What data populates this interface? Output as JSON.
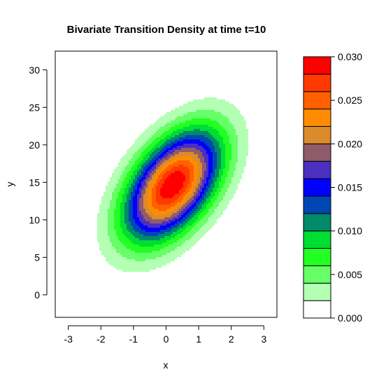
{
  "chart_data": {
    "type": "contour",
    "title": "Bivariate Transition Density at time t=10",
    "xlabel": "x",
    "ylabel": "y",
    "xlim": [
      -3.4,
      3.4
    ],
    "ylim": [
      -3,
      32.5
    ],
    "x_ticks": [
      -3,
      -2,
      -1,
      0,
      1,
      2,
      3
    ],
    "y_ticks": [
      0,
      5,
      10,
      15,
      20,
      25,
      30
    ],
    "grid": false,
    "legend": "right",
    "density": {
      "mean_x": 0.2,
      "mean_y": 14.6,
      "sd_x": 1.0,
      "sd_y": 5.0,
      "correlation": 0.5,
      "peak": 0.03
    },
    "levels": [
      0.0,
      0.002,
      0.004,
      0.006,
      0.008,
      0.01,
      0.012,
      0.014,
      0.016,
      0.018,
      0.02,
      0.022,
      0.024,
      0.026,
      0.028,
      0.03
    ],
    "colors": [
      "#ffffff",
      "#b3ffb3",
      "#66ff66",
      "#22ff22",
      "#00dd33",
      "#008a6a",
      "#0047b3",
      "#0000ff",
      "#4b2fbf",
      "#905b6b",
      "#db8b2c",
      "#ff8c00",
      "#ff6000",
      "#ff3a00",
      "#ff0000"
    ],
    "colorbar_ticks": [
      {
        "value": 0.0,
        "label": "0.000"
      },
      {
        "value": 0.005,
        "label": "0.005"
      },
      {
        "value": 0.01,
        "label": "0.010"
      },
      {
        "value": 0.015,
        "label": "0.015"
      },
      {
        "value": 0.02,
        "label": "0.020"
      },
      {
        "value": 0.025,
        "label": "0.025"
      },
      {
        "value": 0.03,
        "label": "0.030"
      }
    ]
  }
}
